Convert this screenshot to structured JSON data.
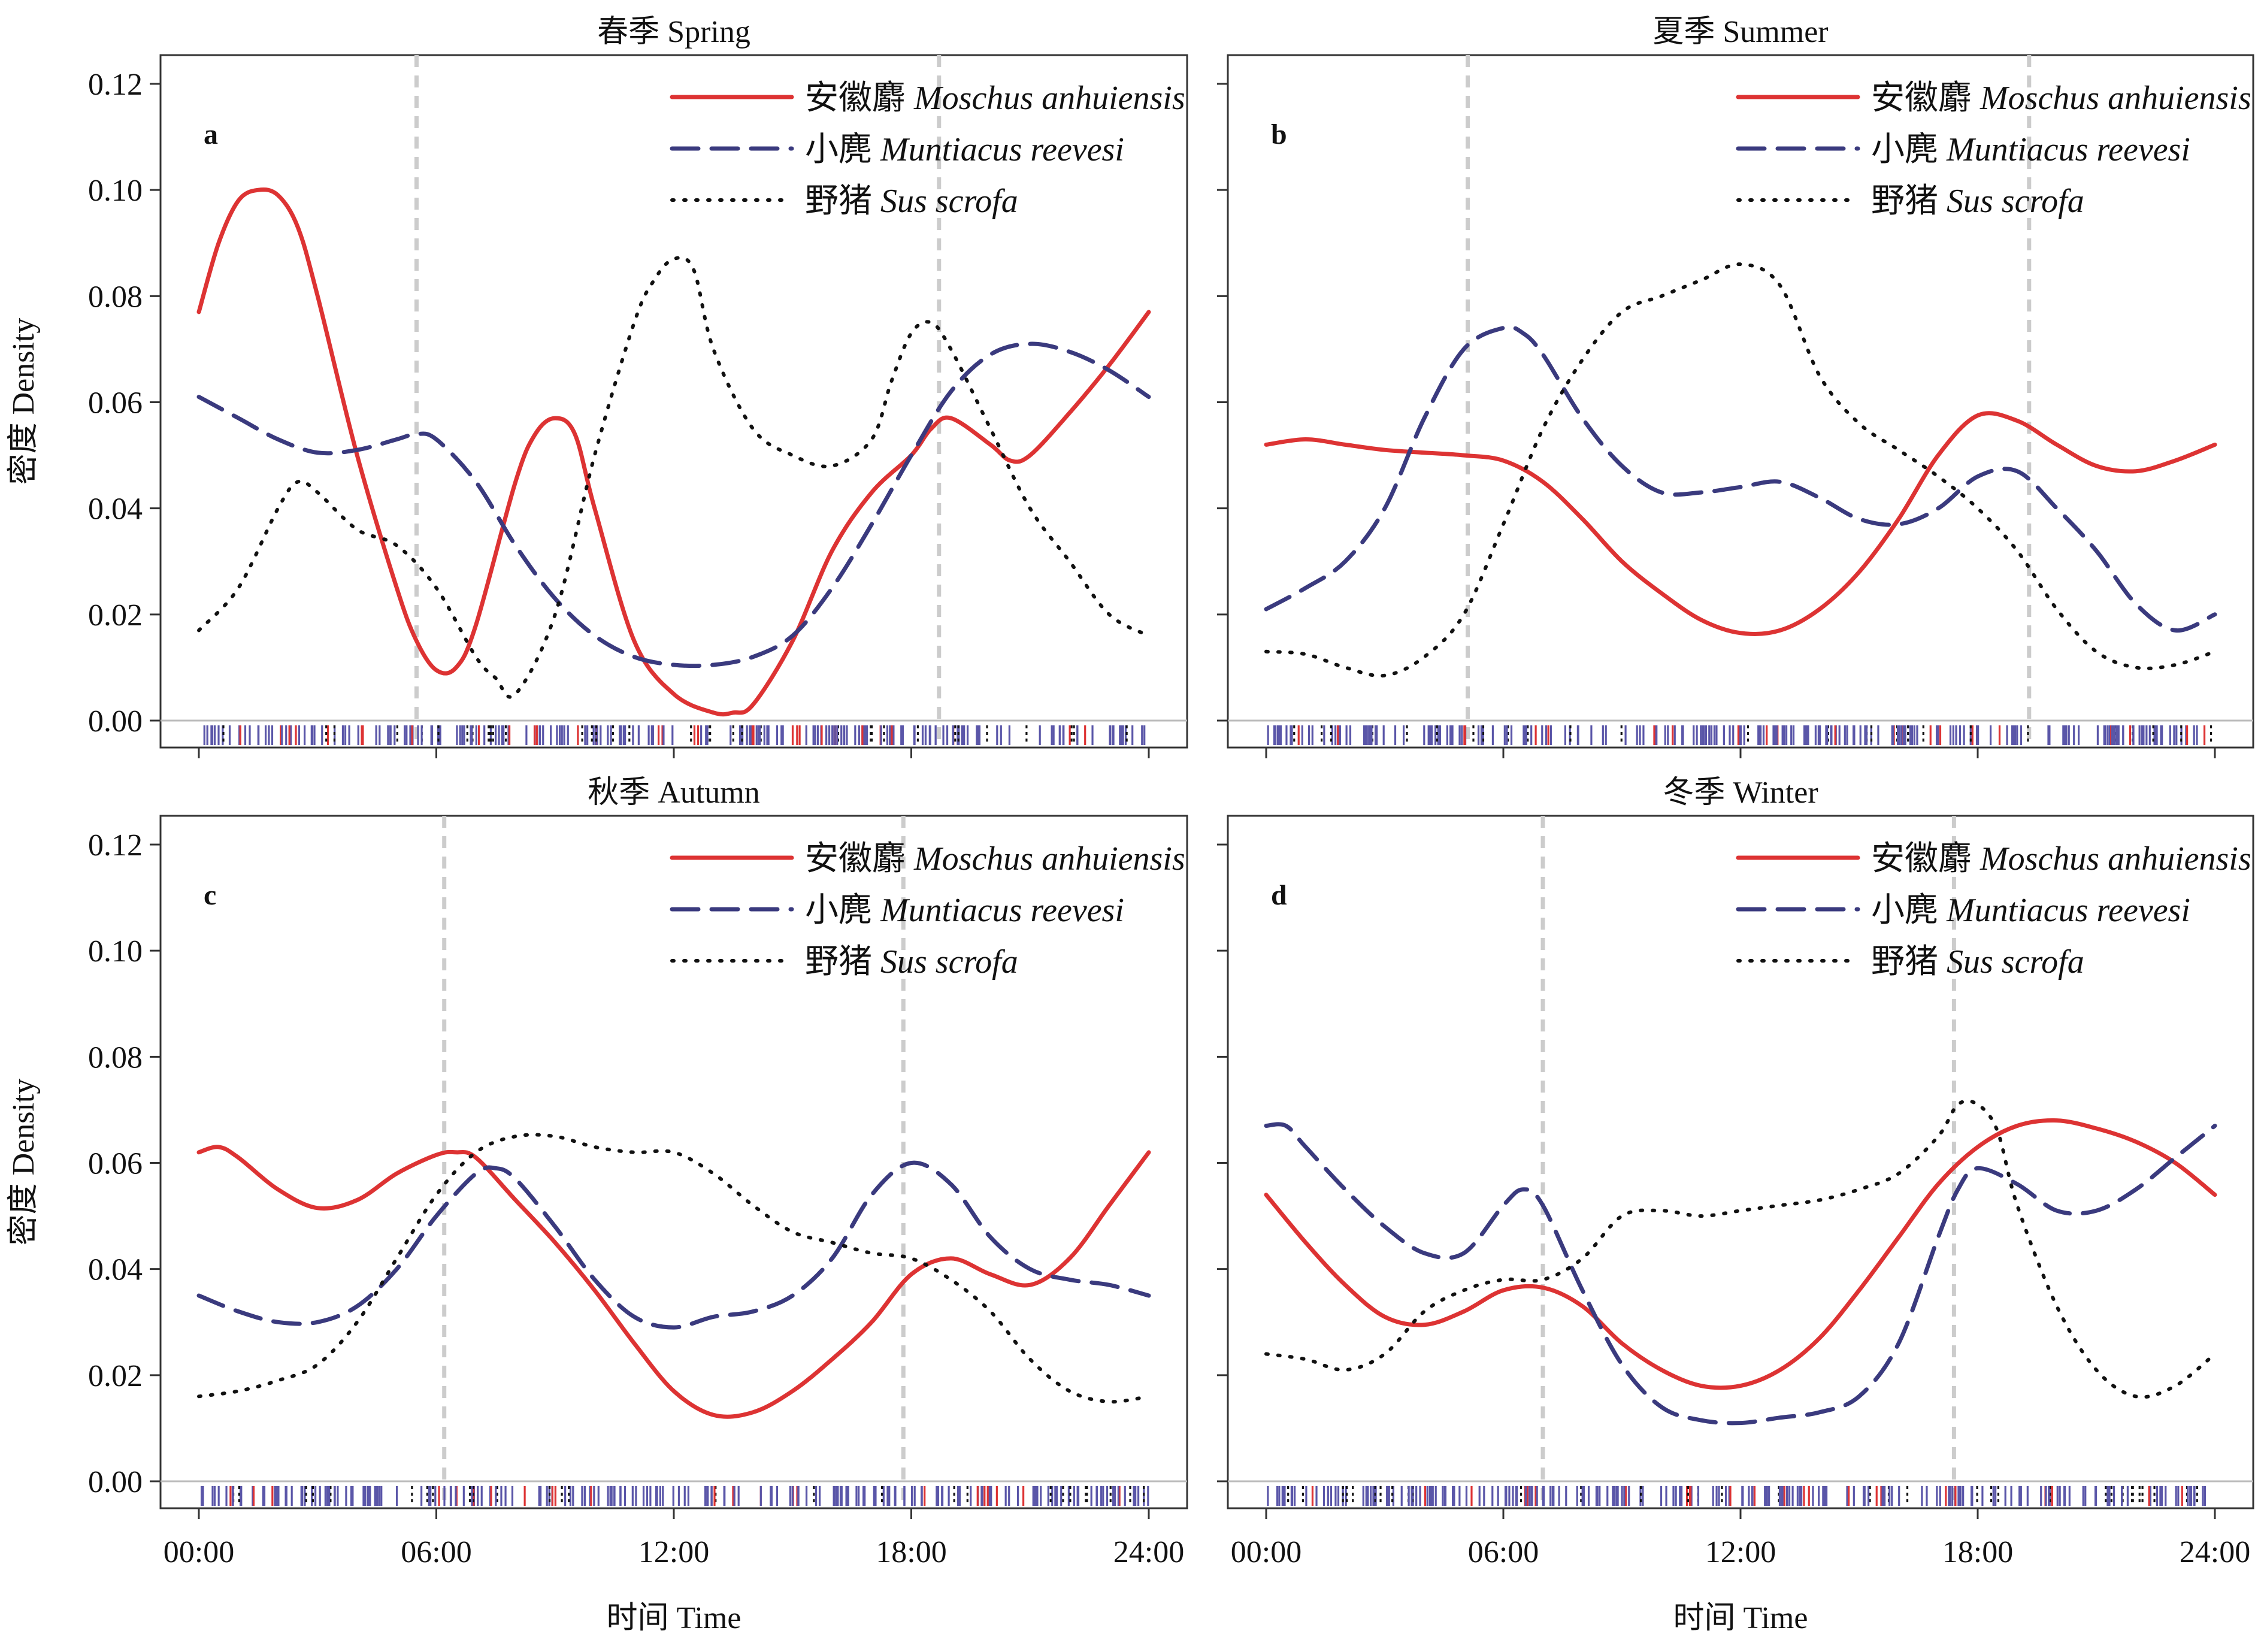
{
  "ylabel": "密度 Density",
  "xlabel": "时间 Time",
  "x_ticks": [
    "00:00",
    "06:00",
    "12:00",
    "18:00",
    "24:00"
  ],
  "y_ticks": [
    "0.00",
    "0.02",
    "0.04",
    "0.06",
    "0.08",
    "0.10",
    "0.12"
  ],
  "legend": [
    {
      "cn": "安徽麝",
      "sci": "Moschus anhuiensis",
      "color": "#dd3333",
      "style": "solid"
    },
    {
      "cn": "小麂",
      "sci": "Muntiacus reevesi",
      "color": "#3a3a7e",
      "style": "dashed"
    },
    {
      "cn": "野猪",
      "sci": "Sus scrofa",
      "color": "#111111",
      "style": "dotted"
    }
  ],
  "colors": {
    "rug_muntjac": "#5a56a8",
    "rug_musk": "#dd3333",
    "rug_boar": "#111111",
    "vline": "#cccccc",
    "frame": "#333333"
  },
  "chart_data": [
    {
      "type": "line",
      "panel": "a",
      "title": "春季 Spring",
      "xlim": [
        0,
        24
      ],
      "ylim": [
        -0.005,
        0.125
      ],
      "sun_lines": [
        5.5,
        18.7
      ],
      "series": [
        {
          "name": "安徽麝 Moschus anhuiensis",
          "x": [
            0,
            0.5,
            1,
            1.5,
            2,
            2.5,
            3,
            4,
            5,
            5.5,
            6,
            6.5,
            7,
            8,
            8.5,
            9,
            9.5,
            10,
            11,
            12,
            13,
            13.5,
            14,
            15,
            16,
            17,
            18,
            18.5,
            19,
            20,
            20.5,
            21,
            22,
            23,
            24
          ],
          "y": [
            0.077,
            0.09,
            0.098,
            0.1,
            0.099,
            0.093,
            0.08,
            0.05,
            0.025,
            0.015,
            0.0095,
            0.01,
            0.018,
            0.045,
            0.054,
            0.057,
            0.054,
            0.04,
            0.015,
            0.005,
            0.0015,
            0.0015,
            0.003,
            0.015,
            0.032,
            0.043,
            0.05,
            0.055,
            0.057,
            0.052,
            0.049,
            0.05,
            0.058,
            0.067,
            0.077
          ]
        },
        {
          "name": "小麂 Muntiacus reevesi",
          "x": [
            0,
            1,
            2,
            3,
            4,
            5,
            5.5,
            6,
            7,
            8,
            9,
            10,
            11,
            12,
            13,
            14,
            15,
            16,
            17,
            18,
            19,
            20,
            21,
            22,
            23,
            24
          ],
          "y": [
            0.061,
            0.057,
            0.053,
            0.0505,
            0.051,
            0.053,
            0.054,
            0.053,
            0.045,
            0.033,
            0.023,
            0.016,
            0.012,
            0.0105,
            0.0105,
            0.012,
            0.016,
            0.025,
            0.037,
            0.05,
            0.062,
            0.069,
            0.071,
            0.0695,
            0.066,
            0.061
          ]
        },
        {
          "name": "野猪 Sus scrofa",
          "x": [
            0,
            1,
            2,
            2.5,
            3,
            4,
            5,
            6,
            7,
            7.5,
            8,
            9,
            10,
            11,
            11.5,
            12,
            12.5,
            13,
            14,
            15,
            16,
            17,
            17.5,
            18,
            18.5,
            19,
            20,
            21,
            22,
            23,
            24
          ],
          "y": [
            0.017,
            0.025,
            0.04,
            0.045,
            0.043,
            0.036,
            0.033,
            0.025,
            0.012,
            0.008,
            0.005,
            0.02,
            0.05,
            0.075,
            0.083,
            0.087,
            0.085,
            0.07,
            0.055,
            0.05,
            0.048,
            0.053,
            0.064,
            0.073,
            0.075,
            0.07,
            0.055,
            0.04,
            0.03,
            0.02,
            0.016
          ]
        }
      ]
    },
    {
      "type": "line",
      "panel": "b",
      "title": "夏季 Summer",
      "xlim": [
        0,
        24
      ],
      "ylim": [
        -0.005,
        0.125
      ],
      "sun_lines": [
        5.1,
        19.3
      ],
      "series": [
        {
          "name": "安徽麝 Moschus anhuiensis",
          "x": [
            0,
            1,
            2,
            3,
            4,
            5,
            6,
            7,
            8,
            9,
            10,
            11,
            12,
            13,
            14,
            15,
            16,
            17,
            18,
            19,
            20,
            21,
            22,
            23,
            24
          ],
          "y": [
            0.052,
            0.053,
            0.052,
            0.051,
            0.0505,
            0.05,
            0.049,
            0.045,
            0.038,
            0.03,
            0.024,
            0.019,
            0.0165,
            0.017,
            0.021,
            0.028,
            0.038,
            0.05,
            0.0575,
            0.0565,
            0.052,
            0.048,
            0.047,
            0.049,
            0.052
          ]
        },
        {
          "name": "小麂 Muntiacus reevesi",
          "x": [
            0,
            1,
            2,
            3,
            4,
            5,
            6,
            6.5,
            7,
            8,
            9,
            10,
            11,
            12,
            13,
            14,
            15,
            16,
            17,
            18,
            19,
            20,
            21,
            22,
            23,
            24
          ],
          "y": [
            0.021,
            0.025,
            0.03,
            0.04,
            0.057,
            0.07,
            0.074,
            0.073,
            0.069,
            0.057,
            0.048,
            0.043,
            0.043,
            0.044,
            0.045,
            0.042,
            0.038,
            0.037,
            0.04,
            0.046,
            0.047,
            0.04,
            0.032,
            0.022,
            0.017,
            0.02
          ]
        },
        {
          "name": "野猪 Sus scrofa",
          "x": [
            0,
            1,
            2,
            3,
            4,
            5,
            6,
            7,
            8,
            9,
            10,
            11,
            12,
            13,
            14,
            15,
            16,
            17,
            18,
            19,
            20,
            21,
            22,
            23,
            24
          ],
          "y": [
            0.013,
            0.0125,
            0.01,
            0.0085,
            0.012,
            0.02,
            0.037,
            0.055,
            0.068,
            0.077,
            0.08,
            0.083,
            0.086,
            0.082,
            0.065,
            0.056,
            0.051,
            0.046,
            0.04,
            0.032,
            0.021,
            0.013,
            0.01,
            0.0105,
            0.013
          ]
        }
      ]
    },
    {
      "type": "line",
      "panel": "c",
      "title": "秋季 Autumn",
      "xlim": [
        0,
        24
      ],
      "ylim": [
        -0.005,
        0.125
      ],
      "sun_lines": [
        6.2,
        17.8
      ],
      "series": [
        {
          "name": "安徽麝 Moschus anhuiensis",
          "x": [
            0,
            0.5,
            1,
            2,
            3,
            4,
            5,
            6,
            6.5,
            7,
            8,
            9,
            10,
            11,
            12,
            13,
            14,
            15,
            16,
            17,
            18,
            19,
            20,
            21,
            22,
            23,
            24
          ],
          "y": [
            0.062,
            0.063,
            0.061,
            0.055,
            0.0515,
            0.053,
            0.058,
            0.0615,
            0.062,
            0.061,
            0.053,
            0.045,
            0.036,
            0.026,
            0.017,
            0.0125,
            0.013,
            0.017,
            0.023,
            0.03,
            0.039,
            0.042,
            0.039,
            0.037,
            0.042,
            0.052,
            0.062
          ]
        },
        {
          "name": "小麂 Muntiacus reevesi",
          "x": [
            0,
            1,
            2,
            3,
            4,
            5,
            6,
            7,
            7.5,
            8,
            9,
            10,
            11,
            12,
            13,
            14,
            15,
            16,
            17,
            18,
            19,
            20,
            21,
            22,
            23,
            24
          ],
          "y": [
            0.035,
            0.032,
            0.03,
            0.03,
            0.033,
            0.04,
            0.05,
            0.058,
            0.059,
            0.057,
            0.048,
            0.038,
            0.031,
            0.029,
            0.031,
            0.032,
            0.035,
            0.042,
            0.054,
            0.06,
            0.056,
            0.046,
            0.04,
            0.038,
            0.037,
            0.035
          ]
        },
        {
          "name": "野猪 Sus scrofa",
          "x": [
            0,
            1,
            2,
            3,
            4,
            5,
            6,
            7,
            8,
            9,
            10,
            11,
            12,
            13,
            14,
            15,
            16,
            17,
            18,
            19,
            20,
            21,
            22,
            23,
            24
          ],
          "y": [
            0.016,
            0.017,
            0.019,
            0.022,
            0.03,
            0.042,
            0.054,
            0.062,
            0.065,
            0.065,
            0.063,
            0.062,
            0.062,
            0.058,
            0.052,
            0.047,
            0.045,
            0.043,
            0.042,
            0.038,
            0.032,
            0.023,
            0.017,
            0.015,
            0.016
          ]
        }
      ]
    },
    {
      "type": "line",
      "panel": "d",
      "title": "冬季 Winter",
      "xlim": [
        0,
        24
      ],
      "ylim": [
        -0.005,
        0.125
      ],
      "sun_lines": [
        7.0,
        17.4
      ],
      "series": [
        {
          "name": "安徽麝 Moschus anhuiensis",
          "x": [
            0,
            1,
            2,
            3,
            4,
            5,
            6,
            7,
            8,
            9,
            10,
            11,
            12,
            13,
            14,
            15,
            16,
            17,
            18,
            19,
            20,
            21,
            22,
            23,
            24
          ],
          "y": [
            0.054,
            0.045,
            0.037,
            0.031,
            0.0295,
            0.032,
            0.036,
            0.0365,
            0.033,
            0.026,
            0.021,
            0.018,
            0.018,
            0.021,
            0.027,
            0.036,
            0.046,
            0.056,
            0.063,
            0.067,
            0.068,
            0.0665,
            0.064,
            0.06,
            0.054
          ]
        },
        {
          "name": "小麂 Muntiacus reevesi",
          "x": [
            0,
            0.5,
            1,
            2,
            3,
            4,
            5,
            6,
            6.5,
            7,
            8,
            9,
            10,
            11,
            12,
            13,
            14,
            15,
            16,
            17,
            17.5,
            18,
            19,
            20,
            21,
            22,
            23,
            24
          ],
          "y": [
            0.067,
            0.067,
            0.063,
            0.055,
            0.048,
            0.043,
            0.043,
            0.052,
            0.055,
            0.052,
            0.036,
            0.022,
            0.014,
            0.0115,
            0.011,
            0.012,
            0.013,
            0.016,
            0.026,
            0.046,
            0.055,
            0.059,
            0.056,
            0.051,
            0.051,
            0.055,
            0.061,
            0.067
          ]
        },
        {
          "name": "野猪 Sus scrofa",
          "x": [
            0,
            1,
            2,
            3,
            4,
            5,
            6,
            7,
            8,
            9,
            10,
            11,
            12,
            13,
            14,
            15,
            16,
            17,
            17.5,
            18,
            18.5,
            19,
            20,
            21,
            22,
            23,
            24
          ],
          "y": [
            0.024,
            0.023,
            0.021,
            0.024,
            0.032,
            0.036,
            0.038,
            0.038,
            0.042,
            0.05,
            0.051,
            0.05,
            0.051,
            0.052,
            0.053,
            0.055,
            0.058,
            0.065,
            0.071,
            0.071,
            0.066,
            0.052,
            0.033,
            0.021,
            0.016,
            0.018,
            0.024
          ]
        }
      ]
    }
  ]
}
